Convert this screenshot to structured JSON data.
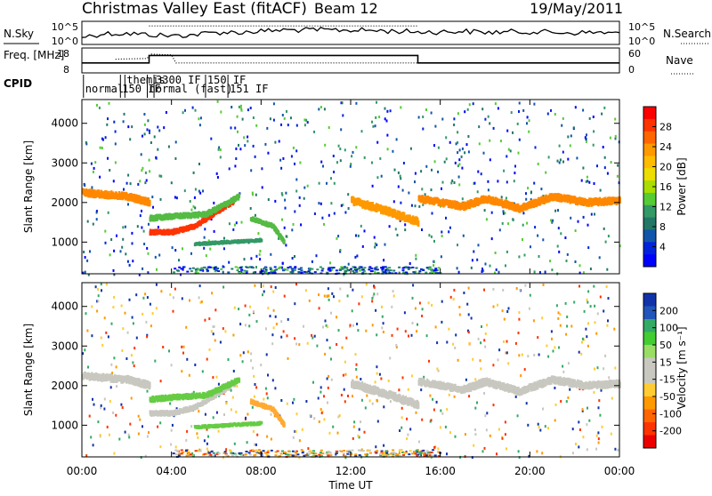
{
  "header": {
    "title": "Christmas Valley East (fitACF)",
    "beam": "Beam 12",
    "date": "19/May/2011"
  },
  "chart_data": [
    {
      "type": "line",
      "title": "",
      "labels": {
        "left": "N.Sky",
        "right": "N.Search"
      },
      "ticks_left": [
        "10^5",
        "10^0"
      ],
      "ticks_right": [
        "10^5",
        "10^0"
      ],
      "series": [
        {
          "name": "N.Sky",
          "style": "solid",
          "x": [
            0,
            1,
            2,
            3,
            4,
            5,
            6,
            7,
            8,
            9,
            10,
            11,
            12,
            13,
            14,
            15,
            16,
            17,
            18,
            19,
            20,
            21,
            22,
            23,
            24
          ],
          "y": [
            0.7,
            0.55,
            0.55,
            0.6,
            0.65,
            0.6,
            0.5,
            0.5,
            0.45,
            0.4,
            0.4,
            0.4,
            0.4,
            0.42,
            0.45,
            0.48,
            0.48,
            0.45,
            0.5,
            0.48,
            0.47,
            0.5,
            0.52,
            0.5,
            0.55
          ]
        },
        {
          "name": "N.Search",
          "style": "dotted",
          "x": [
            3,
            15
          ],
          "y": [
            0.2,
            0.2
          ]
        }
      ]
    },
    {
      "type": "line",
      "title": "",
      "labels": {
        "left": "Freq. [MHz]",
        "right": "Nave"
      },
      "ticks_left": [
        "18",
        "8"
      ],
      "ticks_right": [
        "60",
        "0"
      ],
      "series": [
        {
          "name": "Freq.",
          "style": "solid",
          "x": [
            0,
            1.5,
            1.5,
            3,
            3,
            4.1,
            4.1,
            15,
            15,
            24
          ],
          "y": [
            0.6,
            0.6,
            0.6,
            0.6,
            0.3,
            0.3,
            0.3,
            0.3,
            0.6,
            0.6
          ]
        },
        {
          "name": "Nave",
          "style": "dotted",
          "x": [
            1.5,
            2.9,
            3.1,
            4.0,
            4.2,
            15
          ],
          "y": [
            0.45,
            0.42,
            0.25,
            0.28,
            0.6,
            0.6
          ]
        }
      ]
    },
    {
      "type": "table",
      "label": "CPID",
      "segments": [
        {
          "start": 0.15,
          "text": "normal",
          "row": 1
        },
        {
          "start": 1.8,
          "text": "150 IF",
          "row": 1
        },
        {
          "start": 2.0,
          "text": "themis",
          "row": 0
        },
        {
          "start": 3.0,
          "text": "normal (fast)",
          "row": 1
        },
        {
          "start": 3.3,
          "text": "3300 IF",
          "row": 0
        },
        {
          "start": 5.6,
          "text": "150 IF",
          "row": 0
        },
        {
          "start": 6.6,
          "text": "151 IF",
          "row": 1
        }
      ]
    },
    {
      "type": "heatmap",
      "title": "",
      "ylabel": "Slant Range [km]",
      "xlabel": "",
      "yticks": [
        1000,
        2000,
        3000,
        4000
      ],
      "ylim": [
        200,
        4600
      ],
      "xlim": [
        0,
        24
      ],
      "colorbar": {
        "label": "Power [dB]",
        "ticks": [
          "28",
          "24",
          "20",
          "16",
          "12",
          "8",
          "4"
        ],
        "colors": [
          "#ff0000",
          "#ff3300",
          "#ff6600",
          "#ff9900",
          "#ffbb00",
          "#eedd00",
          "#aadd00",
          "#55cc33",
          "#339966",
          "#227766",
          "#1155aa",
          "#0022dd",
          "#0000ff"
        ]
      },
      "bands": [
        {
          "x": [
            0,
            2.0,
            3.0
          ],
          "y": [
            2250,
            2150,
            2000
          ],
          "width": 150,
          "color": "#ff8800"
        },
        {
          "x": [
            3,
            4.0,
            5.0,
            6.8
          ],
          "y": [
            1250,
            1250,
            1400,
            2050
          ],
          "width": 110,
          "color": "#ff3300"
        },
        {
          "x": [
            3,
            4.0,
            5.5,
            7.0
          ],
          "y": [
            1600,
            1650,
            1700,
            2150
          ],
          "width": 120,
          "color": "#55bb44"
        },
        {
          "x": [
            5,
            6.5,
            8.0
          ],
          "y": [
            950,
            1000,
            1050
          ],
          "width": 80,
          "color": "#339966"
        },
        {
          "x": [
            7.5,
            8.5,
            9.0
          ],
          "y": [
            1600,
            1400,
            1000
          ],
          "width": 100,
          "color": "#55bb44"
        },
        {
          "x": [
            12.0,
            13.5,
            15.0
          ],
          "y": [
            2050,
            1800,
            1500
          ],
          "width": 160,
          "color": "#ff9900"
        },
        {
          "x": [
            15,
            17.0,
            18.0,
            19.5,
            21.0,
            22.5,
            24.0
          ],
          "y": [
            2100,
            1900,
            2100,
            1850,
            2150,
            2000,
            2050
          ],
          "width": 150,
          "color": "#ff8800"
        }
      ]
    },
    {
      "type": "heatmap",
      "title": "",
      "ylabel": "Slant Range [km]",
      "xlabel": "Time UT",
      "xticks": [
        "00:00",
        "04:00",
        "08:00",
        "12:00",
        "16:00",
        "20:00",
        "00:00"
      ],
      "yticks": [
        1000,
        2000,
        3000,
        4000
      ],
      "ylim": [
        200,
        4600
      ],
      "xlim": [
        0,
        24
      ],
      "colorbar": {
        "label": "Velocity [m s⁻¹]",
        "ticks": [
          "200",
          "100",
          "50",
          "15",
          "-15",
          "-50",
          "-100",
          "-200"
        ],
        "colors": [
          "#1133aa",
          "#2255bb",
          "#33aa66",
          "#44cc33",
          "#99dd66",
          "#c8c8c0",
          "#c8c8c0",
          "#ffcc33",
          "#ff9900",
          "#ff6600",
          "#ff3300",
          "#ee0000"
        ]
      },
      "bands": [
        {
          "x": [
            0,
            2.0,
            3.0
          ],
          "y": [
            2250,
            2150,
            2000
          ],
          "width": 150,
          "color": "#c8c8c0"
        },
        {
          "x": [
            3,
            4.0,
            5.0,
            6.8
          ],
          "y": [
            1300,
            1300,
            1450,
            2050
          ],
          "width": 110,
          "color": "#c8c8c0"
        },
        {
          "x": [
            3,
            4.0,
            5.5,
            7.0
          ],
          "y": [
            1650,
            1700,
            1750,
            2150
          ],
          "width": 120,
          "color": "#66cc44"
        },
        {
          "x": [
            5,
            6.5,
            8.0
          ],
          "y": [
            950,
            1000,
            1050
          ],
          "width": 80,
          "color": "#66cc44"
        },
        {
          "x": [
            7.5,
            8.5,
            9.0
          ],
          "y": [
            1600,
            1400,
            1000
          ],
          "width": 100,
          "color": "#ffaa33"
        },
        {
          "x": [
            12.0,
            13.5,
            15.0
          ],
          "y": [
            2050,
            1800,
            1500
          ],
          "width": 160,
          "color": "#c8c8c0"
        },
        {
          "x": [
            15,
            17.0,
            18.0,
            19.5,
            21.0,
            22.5,
            24.0
          ],
          "y": [
            2100,
            1900,
            2100,
            1850,
            2150,
            2000,
            2050
          ],
          "width": 150,
          "color": "#c8c8c0"
        }
      ]
    }
  ]
}
